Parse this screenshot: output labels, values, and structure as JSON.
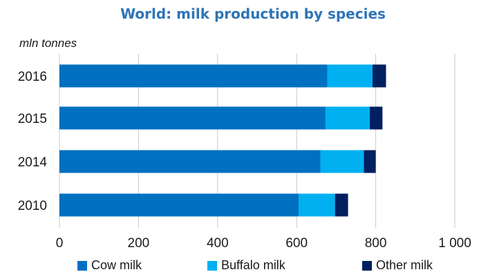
{
  "chart_data": {
    "type": "bar",
    "orientation": "horizontal",
    "stacked": true,
    "title": "World: milk production by species",
    "unit_label": "mln tonnes",
    "categories": [
      "2016",
      "2015",
      "2014",
      "2010"
    ],
    "series": [
      {
        "name": "Cow milk",
        "color": "#0070c0",
        "values": [
          678,
          673,
          660,
          605
        ]
      },
      {
        "name": "Buffalo milk",
        "color": "#00b0f0",
        "values": [
          114,
          112,
          110,
          92
        ]
      },
      {
        "name": "Other milk",
        "color": "#002060",
        "values": [
          34,
          32,
          30,
          33
        ]
      }
    ],
    "xlim": [
      0,
      1000
    ],
    "x_ticks": [
      "0",
      "200",
      "400",
      "600",
      "800",
      "1 000"
    ],
    "x_tick_values": [
      0,
      200,
      400,
      600,
      800,
      1000
    ],
    "grid": "vertical",
    "legend_position": "bottom"
  },
  "colors": {
    "title": "#2e75b6",
    "grid": "#c8c8c8"
  }
}
